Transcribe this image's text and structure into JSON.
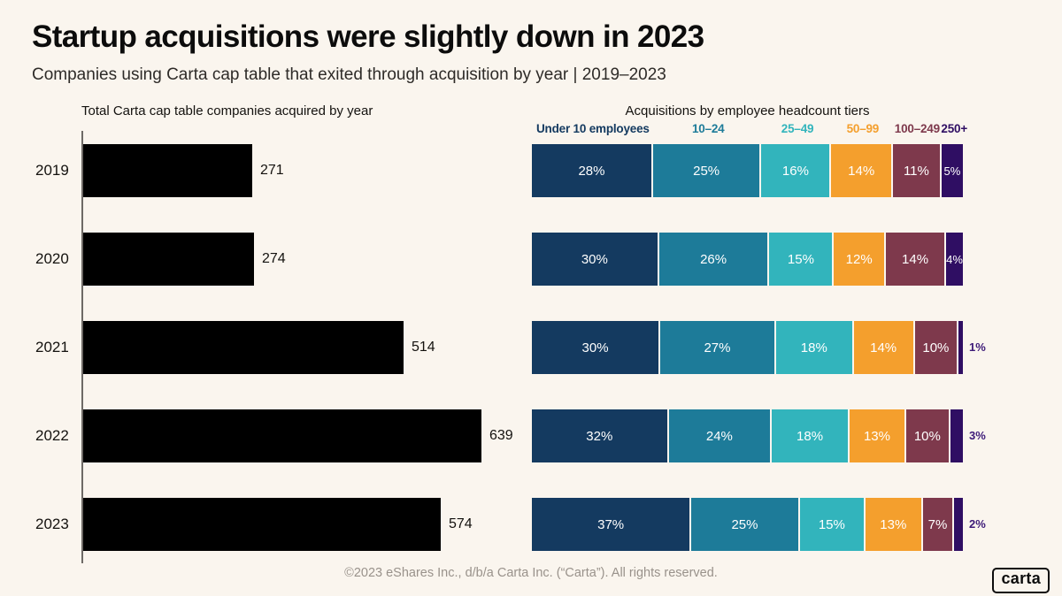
{
  "page": {
    "background": "#faf5ee"
  },
  "header": {
    "title": "Startup acquisitions were slightly down in 2023",
    "subtitle": "Companies using Carta cap table that exited through acquisition by year | 2019–2023"
  },
  "footer": {
    "copyright": "©2023 eShares Inc., d/b/a Carta Inc. (“Carta”). All rights reserved.",
    "logo_text": "carta"
  },
  "chart_data": [
    {
      "type": "bar",
      "orientation": "horizontal",
      "title": "Total Carta cap table companies acquired by year",
      "categories": [
        "2019",
        "2020",
        "2021",
        "2022",
        "2023"
      ],
      "values": [
        271,
        274,
        514,
        639,
        574
      ],
      "bar_color": "#000000",
      "xlim": [
        0,
        639
      ],
      "grid": false
    },
    {
      "type": "bar",
      "stacked": true,
      "orientation": "horizontal",
      "title": "Acquisitions by employee headcount tiers",
      "categories": [
        "2019",
        "2020",
        "2021",
        "2022",
        "2023"
      ],
      "series": [
        {
          "name": "Under 10 employees",
          "color": "#143a60",
          "values": [
            28,
            30,
            30,
            32,
            37
          ]
        },
        {
          "name": "10–24",
          "color": "#1d7b99",
          "values": [
            25,
            26,
            27,
            24,
            25
          ]
        },
        {
          "name": "25–49",
          "color": "#32b4bc",
          "values": [
            16,
            15,
            18,
            18,
            15
          ]
        },
        {
          "name": "50–99",
          "color": "#f49f2d",
          "values": [
            14,
            12,
            14,
            13,
            13
          ]
        },
        {
          "name": "100–249",
          "color": "#7e394c",
          "values": [
            11,
            14,
            10,
            10,
            7
          ]
        },
        {
          "name": "250+",
          "color": "#2f0e63",
          "values": [
            5,
            4,
            1,
            3,
            2
          ]
        }
      ],
      "value_suffix": "%",
      "legend_position": "top",
      "outside_rows": [
        2,
        3,
        4
      ],
      "outside_label_color": "#3d1a78"
    }
  ]
}
